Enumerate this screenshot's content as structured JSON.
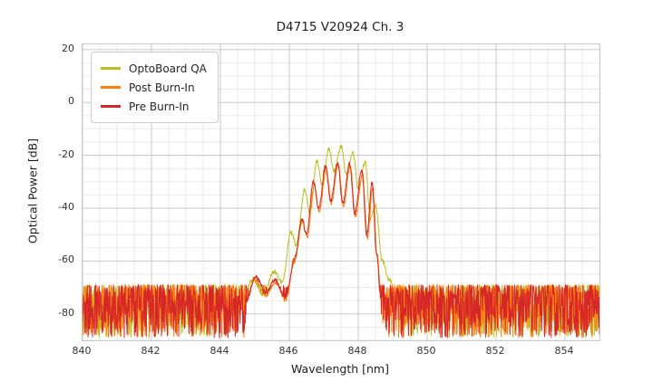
{
  "chart_data": {
    "type": "line",
    "title": "D4715 V20924 Ch. 3",
    "xlabel": "Wavelength [nm]",
    "ylabel": "Optical Power [dB]",
    "xlim": [
      840,
      855
    ],
    "ylim": [
      -90,
      22
    ],
    "xticks": [
      840,
      842,
      844,
      846,
      848,
      850,
      852,
      854
    ],
    "yticks": [
      20,
      0,
      -20,
      -40,
      -60,
      -80
    ],
    "minor_step_x": 0.5,
    "minor_step_y": 5,
    "grid": true,
    "legend_position": "upper-left",
    "background_color": "#ffffff",
    "major_grid_color": "#c6c6c6",
    "minor_grid_color": "#e2e2e2",
    "spine_color": "#c9c9c9",
    "text_color": "#262626",
    "noise": {
      "floor_top": -69,
      "floor_bottom": -89,
      "skew": 1.5,
      "step_nm": 0.01,
      "signal_jitter": 0.8
    },
    "series": [
      {
        "name": "OptoBoard QA",
        "color": "#bcbd22",
        "seed": 101,
        "envelope": [
          [
            843.9,
            -78
          ],
          [
            844.35,
            -71
          ],
          [
            844.6,
            -75
          ],
          [
            844.95,
            -67
          ],
          [
            845.25,
            -73
          ],
          [
            845.55,
            -64
          ],
          [
            845.8,
            -68
          ],
          [
            846.05,
            -49
          ],
          [
            846.2,
            -54
          ],
          [
            846.45,
            -33
          ],
          [
            846.6,
            -42
          ],
          [
            846.8,
            -22
          ],
          [
            846.95,
            -31
          ],
          [
            847.15,
            -17.5
          ],
          [
            847.3,
            -26
          ],
          [
            847.5,
            -16.5
          ],
          [
            847.65,
            -27
          ],
          [
            847.85,
            -19
          ],
          [
            848.0,
            -33
          ],
          [
            848.2,
            -22.5
          ],
          [
            848.35,
            -44
          ],
          [
            848.5,
            -39
          ],
          [
            848.7,
            -60
          ],
          [
            848.9,
            -67
          ],
          [
            849.15,
            -76
          ]
        ]
      },
      {
        "name": "Post Burn-In",
        "color": "#ff7f0e",
        "seed": 202,
        "envelope": [
          [
            844.7,
            -76
          ],
          [
            845.0,
            -67
          ],
          [
            845.3,
            -73
          ],
          [
            845.6,
            -68
          ],
          [
            845.9,
            -75
          ],
          [
            846.15,
            -60
          ],
          [
            846.38,
            -45
          ],
          [
            846.52,
            -51
          ],
          [
            846.72,
            -31
          ],
          [
            846.87,
            -41
          ],
          [
            847.07,
            -25
          ],
          [
            847.22,
            -38
          ],
          [
            847.42,
            -23.5
          ],
          [
            847.57,
            -39
          ],
          [
            847.77,
            -24
          ],
          [
            847.92,
            -43
          ],
          [
            848.12,
            -27
          ],
          [
            848.27,
            -51
          ],
          [
            848.42,
            -32
          ],
          [
            848.55,
            -58
          ],
          [
            848.68,
            -76
          ]
        ]
      },
      {
        "name": "Pre Burn-In",
        "color": "#d62728",
        "seed": 303,
        "envelope": [
          [
            844.75,
            -75
          ],
          [
            845.02,
            -66
          ],
          [
            845.32,
            -72
          ],
          [
            845.58,
            -67
          ],
          [
            845.88,
            -74
          ],
          [
            846.18,
            -58
          ],
          [
            846.36,
            -44
          ],
          [
            846.5,
            -50
          ],
          [
            846.7,
            -30
          ],
          [
            846.85,
            -40
          ],
          [
            847.05,
            -24
          ],
          [
            847.2,
            -37
          ],
          [
            847.4,
            -22.8
          ],
          [
            847.55,
            -38
          ],
          [
            847.75,
            -23.2
          ],
          [
            847.9,
            -42
          ],
          [
            848.1,
            -25.5
          ],
          [
            848.25,
            -50
          ],
          [
            848.4,
            -30.5
          ],
          [
            848.53,
            -57
          ],
          [
            848.66,
            -75
          ]
        ]
      }
    ]
  }
}
